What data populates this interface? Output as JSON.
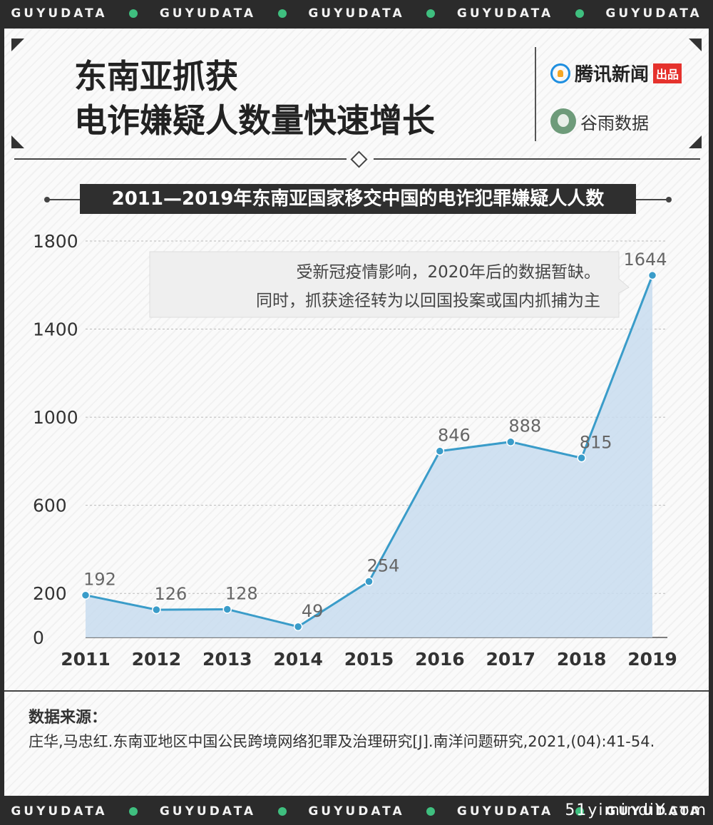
{
  "band": {
    "word": "GUYUDATA"
  },
  "header": {
    "title_line1": "东南亚抓获",
    "title_line2": "电诈嫌疑人数量快速增长",
    "brand_primary": "腾讯新闻",
    "brand_primary_tag": "出品",
    "brand_secondary": "谷雨数据"
  },
  "chart_data": {
    "type": "area",
    "title": "2011—2019年东南亚国家移交中国的电诈犯罪嫌疑人人数",
    "categories": [
      "2011",
      "2012",
      "2013",
      "2014",
      "2015",
      "2016",
      "2017",
      "2018",
      "2019"
    ],
    "values": [
      192,
      126,
      128,
      49,
      254,
      846,
      888,
      815,
      1644
    ],
    "yticks": [
      0,
      200,
      600,
      1000,
      1400,
      1800
    ],
    "ylim": [
      0,
      1800
    ],
    "grid": true,
    "colors": {
      "line": "#3a9cc9",
      "fill": "#c8dcee",
      "point": "#3a9cc9"
    },
    "annotation": {
      "line1": "受新冠疫情影响，2020年后的数据暂缺。",
      "line2": "同时，抓获途径转为以回国投案或国内抓捕为主"
    }
  },
  "source": {
    "label": "数据来源：",
    "text": "庄华,马忠红.东南亚地区中国公民跨境网络犯罪及治理研究[J].南洋问题研究,2021,(04):41-54."
  },
  "watermark": "51yimindiY.com"
}
